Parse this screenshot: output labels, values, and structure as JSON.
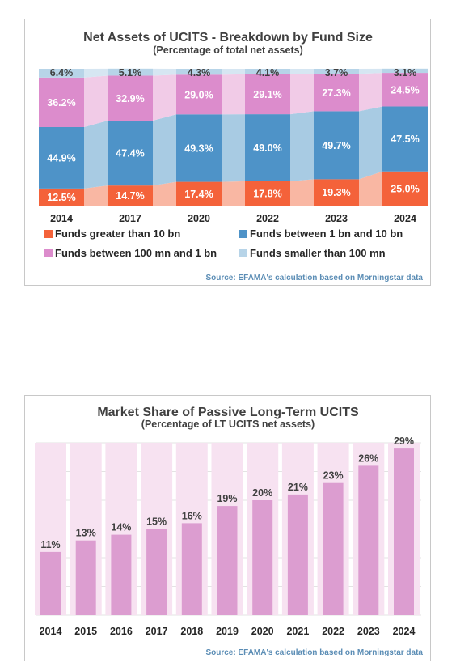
{
  "chart_data": [
    {
      "type": "bar",
      "stacked": true,
      "title": "Net Assets of UCITS - Breakdown by Fund Size",
      "subtitle": "(Percentage of total net assets)",
      "categories": [
        "2014",
        "2017",
        "2020",
        "2022",
        "2023",
        "2024"
      ],
      "series": [
        {
          "name": "Funds greater than 10 bn",
          "values": [
            12.5,
            14.7,
            17.4,
            17.8,
            19.3,
            25.0
          ],
          "labels": [
            "12.5%",
            "14.7%",
            "17.4%",
            "17.8%",
            "19.3%",
            "25.0%"
          ],
          "color": "#f4623a",
          "label_color": "#ffffff"
        },
        {
          "name": "Funds between 1 bn and 10 bn",
          "values": [
            44.9,
            47.4,
            49.3,
            49.0,
            49.7,
            47.5
          ],
          "labels": [
            "44.9%",
            "47.4%",
            "49.3%",
            "49.0%",
            "49.7%",
            "47.5%"
          ],
          "color": "#4e93c8",
          "label_color": "#ffffff"
        },
        {
          "name": "Funds between 100 mn and 1 bn",
          "values": [
            36.2,
            32.9,
            29.0,
            29.1,
            27.3,
            24.5
          ],
          "labels": [
            "36.2%",
            "32.9%",
            "29.0%",
            "29.1%",
            "27.3%",
            "24.5%"
          ],
          "color": "#dc8ccc",
          "label_color": "#ffffff"
        },
        {
          "name": "Funds smaller than 100 mn",
          "values": [
            6.4,
            5.1,
            4.3,
            4.1,
            3.7,
            3.1
          ],
          "labels": [
            "6.4%",
            "5.1%",
            "4.3%",
            "4.1%",
            "3.7%",
            "3.1%"
          ],
          "color": "#b7d4e8",
          "label_color": "#404040"
        }
      ],
      "connector_colors": [
        "#f9b7a3",
        "#a8cbe3",
        "#f1cbe7",
        "#d6e6f2"
      ],
      "ylim": [
        0,
        100
      ],
      "legend_position": "bottom",
      "grid": false,
      "source": "Source: EFAMA's calculation based on Morningstar data"
    },
    {
      "type": "bar",
      "title": "Market Share of Passive Long-Term UCITS",
      "subtitle": "(Percentage of LT UCITS net assets)",
      "categories": [
        "2014",
        "2015",
        "2016",
        "2017",
        "2018",
        "2019",
        "2020",
        "2021",
        "2022",
        "2023",
        "2024"
      ],
      "values": [
        11,
        13,
        14,
        15,
        16,
        19,
        20,
        21,
        23,
        26,
        29
      ],
      "labels": [
        "11%",
        "13%",
        "14%",
        "15%",
        "16%",
        "19%",
        "20%",
        "21%",
        "23%",
        "26%",
        "29%"
      ],
      "ylim": [
        0,
        30
      ],
      "bar_color": "#dc9dd0",
      "background_bar_color": "#f7e2f1",
      "grid": true,
      "source": "Source: EFAMA's calculation based on Morningstar data"
    }
  ]
}
